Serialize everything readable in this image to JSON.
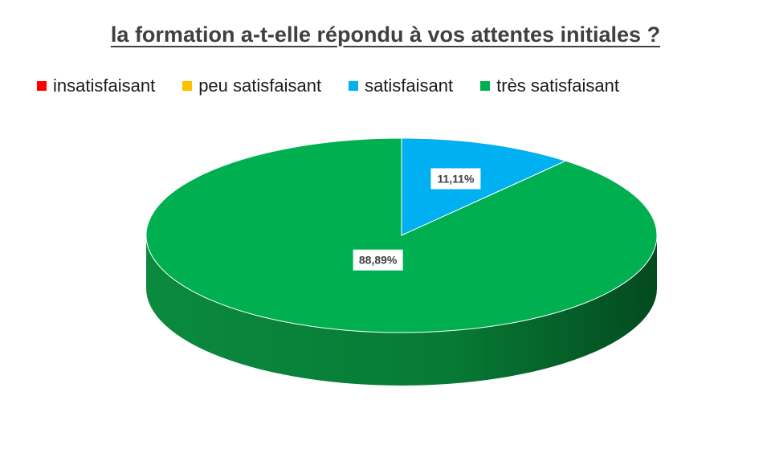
{
  "chart_data": {
    "type": "pie",
    "title": "la formation a-t-elle répondu à vos attentes initiales ?",
    "legend_position": "top",
    "categories": [
      "insatisfaisant",
      "peu satisfaisant",
      "satisfaisant",
      "très satisfaisant"
    ],
    "values": [
      0,
      0,
      11.11,
      88.89
    ],
    "data_labels": [
      "",
      "",
      "11,11%",
      "88,89%"
    ],
    "colors": [
      "#ff0000",
      "#ffc000",
      "#00b0f0",
      "#00b050"
    ],
    "style": "3d"
  }
}
